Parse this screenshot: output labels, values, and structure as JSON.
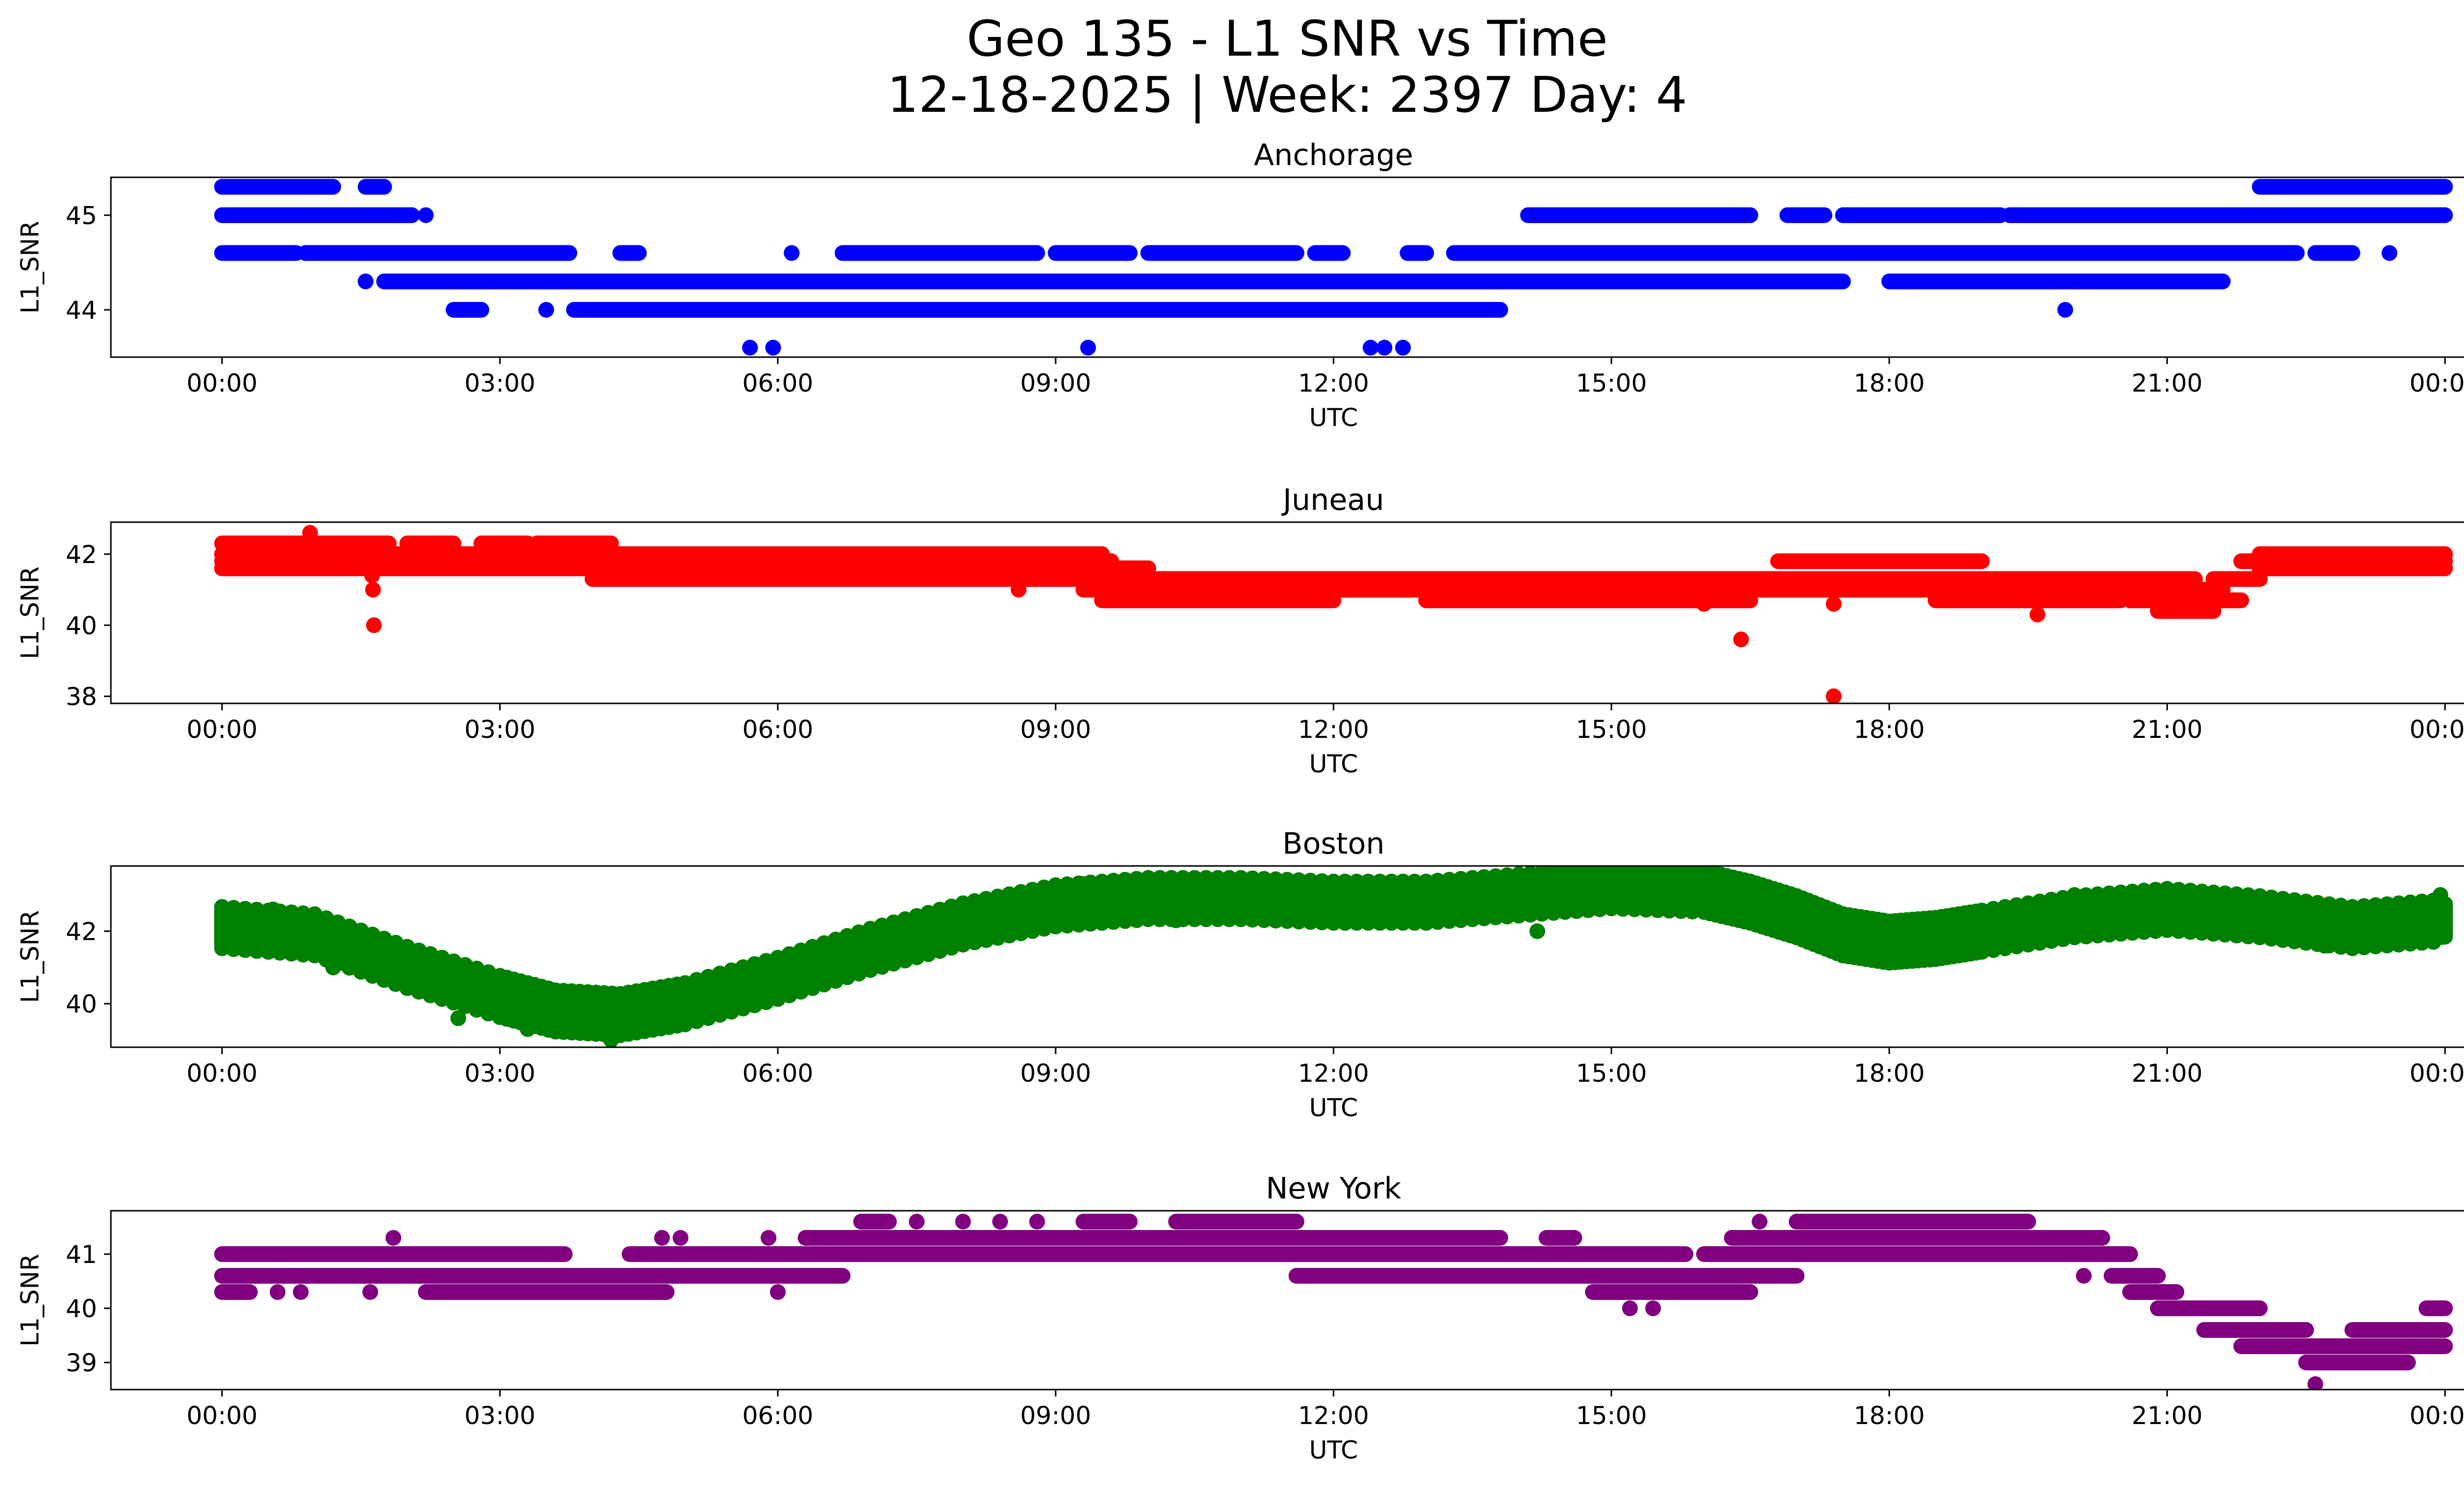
{
  "figure": {
    "title_line1": "Geo 135 - L1 SNR vs Time",
    "title_line2": "12-18-2025 | Week: 2397 Day: 4"
  },
  "chart_data": [
    {
      "type": "scatter",
      "title": "Anchorage",
      "xlabel": "UTC",
      "ylabel": "L1_SNR",
      "color": "#0000ff",
      "xlim": [
        -1.2,
        25.2
      ],
      "ylim": [
        43.5,
        45.4
      ],
      "x_ticks": [
        "00:00",
        "03:00",
        "06:00",
        "09:00",
        "12:00",
        "15:00",
        "18:00",
        "21:00",
        "00:00"
      ],
      "y_ticks": [
        44,
        45
      ],
      "bands": [
        {
          "y": 45.3,
          "segments": [
            [
              0.0,
              1.2
            ],
            [
              1.55,
              1.75
            ],
            [
              22.0,
              24.0
            ]
          ]
        },
        {
          "y": 45.0,
          "segments": [
            [
              0.0,
              2.05
            ],
            [
              14.1,
              16.5
            ],
            [
              16.9,
              17.3
            ],
            [
              17.5,
              19.2
            ],
            [
              19.3,
              24.0
            ]
          ]
        },
        {
          "y": 44.6,
          "segments": [
            [
              0.0,
              0.8
            ],
            [
              0.9,
              3.75
            ],
            [
              4.3,
              4.5
            ],
            [
              6.7,
              8.8
            ],
            [
              9.0,
              9.8
            ],
            [
              10.0,
              11.6
            ],
            [
              11.8,
              12.1
            ],
            [
              12.8,
              13.0
            ],
            [
              13.3,
              22.4
            ],
            [
              22.6,
              23.0
            ]
          ]
        },
        {
          "y": 44.3,
          "segments": [
            [
              1.75,
              17.5
            ],
            [
              18.0,
              21.6
            ]
          ]
        },
        {
          "y": 44.0,
          "segments": [
            [
              2.5,
              2.8
            ],
            [
              3.8,
              13.8
            ]
          ]
        }
      ],
      "points": [
        {
          "x": 1.55,
          "y": 44.3
        },
        {
          "x": 2.2,
          "y": 45.0
        },
        {
          "x": 3.5,
          "y": 44.0
        },
        {
          "x": 5.7,
          "y": 43.6
        },
        {
          "x": 5.95,
          "y": 43.6
        },
        {
          "x": 6.15,
          "y": 44.6
        },
        {
          "x": 9.35,
          "y": 43.6
        },
        {
          "x": 12.4,
          "y": 43.6
        },
        {
          "x": 12.55,
          "y": 43.6
        },
        {
          "x": 12.75,
          "y": 43.6
        },
        {
          "x": 19.9,
          "y": 44.0
        },
        {
          "x": 23.4,
          "y": 44.6
        },
        {
          "x": 12.9,
          "y": 44.6
        }
      ]
    },
    {
      "type": "scatter",
      "title": "Juneau",
      "xlabel": "UTC",
      "ylabel": "L1_SNR",
      "color": "#ff0000",
      "xlim": [
        -1.2,
        25.2
      ],
      "ylim": [
        37.8,
        42.9
      ],
      "x_ticks": [
        "00:00",
        "03:00",
        "06:00",
        "09:00",
        "12:00",
        "15:00",
        "18:00",
        "21:00",
        "00:00"
      ],
      "y_ticks": [
        38,
        40,
        42
      ],
      "bands": [
        {
          "y": 42.3,
          "segments": [
            [
              0.0,
              1.8
            ],
            [
              2.0,
              2.5
            ],
            [
              2.8,
              3.3
            ],
            [
              3.4,
              4.2
            ]
          ]
        },
        {
          "y": 42.0,
          "segments": [
            [
              0.0,
              9.5
            ],
            [
              22.0,
              24.0
            ]
          ]
        },
        {
          "y": 41.8,
          "segments": [
            [
              0.0,
              9.6
            ],
            [
              16.8,
              19.0
            ],
            [
              21.8,
              24.0
            ]
          ]
        },
        {
          "y": 41.6,
          "segments": [
            [
              0.0,
              10.0
            ],
            [
              22.0,
              24.0
            ]
          ]
        },
        {
          "y": 41.3,
          "segments": [
            [
              4.0,
              21.3
            ],
            [
              21.5,
              22.0
            ]
          ]
        },
        {
          "y": 41.0,
          "segments": [
            [
              9.3,
              21.6
            ]
          ]
        },
        {
          "y": 40.7,
          "segments": [
            [
              9.5,
              12.0
            ],
            [
              13.0,
              16.5
            ],
            [
              18.5,
              20.5
            ],
            [
              20.6,
              21.8
            ]
          ]
        },
        {
          "y": 40.4,
          "segments": [
            [
              20.9,
              21.5
            ]
          ]
        }
      ],
      "points": [
        {
          "x": 0.95,
          "y": 42.6
        },
        {
          "x": 1.35,
          "y": 41.6
        },
        {
          "x": 1.62,
          "y": 41.4
        },
        {
          "x": 1.63,
          "y": 41.0
        },
        {
          "x": 1.64,
          "y": 40.0
        },
        {
          "x": 16.4,
          "y": 39.6
        },
        {
          "x": 17.4,
          "y": 38.0
        },
        {
          "x": 17.4,
          "y": 40.6
        },
        {
          "x": 22.2,
          "y": 42.0
        },
        {
          "x": 19.6,
          "y": 40.3
        },
        {
          "x": 16.0,
          "y": 40.6
        },
        {
          "x": 8.6,
          "y": 41.0
        },
        {
          "x": 18.6,
          "y": 40.7
        }
      ]
    },
    {
      "type": "scatter",
      "title": "Boston",
      "xlabel": "UTC",
      "ylabel": "L1_SNR",
      "color": "#008000",
      "xlim": [
        -1.2,
        25.2
      ],
      "ylim": [
        38.8,
        43.8
      ],
      "x_ticks": [
        "00:00",
        "03:00",
        "06:00",
        "09:00",
        "12:00",
        "15:00",
        "18:00",
        "21:00",
        "00:00"
      ],
      "y_ticks": [
        40,
        42
      ],
      "trend": {
        "x": [
          0.0,
          1.0,
          2.0,
          3.0,
          3.6,
          4.3,
          5.0,
          6.0,
          7.0,
          8.0,
          9.0,
          10.0,
          11.0,
          12.0,
          13.0,
          14.0,
          15.0,
          16.0,
          16.5,
          17.0,
          17.5,
          18.0,
          18.5,
          19.0,
          20.0,
          21.0,
          22.0,
          23.0,
          24.0
        ],
        "center": [
          42.1,
          41.9,
          41.0,
          40.2,
          39.8,
          39.7,
          40.0,
          40.7,
          41.5,
          42.2,
          42.7,
          42.9,
          42.9,
          42.8,
          42.8,
          43.0,
          43.2,
          43.1,
          42.8,
          42.4,
          41.9,
          41.7,
          41.8,
          42.0,
          42.4,
          42.6,
          42.4,
          42.1,
          42.3
        ],
        "spread": 0.45
      },
      "points": [
        {
          "x": 0.55,
          "y": 42.6
        },
        {
          "x": 1.2,
          "y": 41.0
        },
        {
          "x": 2.5,
          "y": 41.0
        },
        {
          "x": 2.55,
          "y": 39.6
        },
        {
          "x": 3.3,
          "y": 39.3
        },
        {
          "x": 4.2,
          "y": 39.0
        },
        {
          "x": 10.3,
          "y": 42.3
        },
        {
          "x": 12.0,
          "y": 43.3
        },
        {
          "x": 14.2,
          "y": 42.0
        },
        {
          "x": 15.5,
          "y": 43.5
        },
        {
          "x": 15.45,
          "y": 43.6
        },
        {
          "x": 20.0,
          "y": 43.0
        },
        {
          "x": 22.7,
          "y": 41.6
        },
        {
          "x": 23.0,
          "y": 41.6
        },
        {
          "x": 23.95,
          "y": 43.0
        },
        {
          "x": 16.8,
          "y": 42.3
        },
        {
          "x": 9.3,
          "y": 43.3
        },
        {
          "x": 18.3,
          "y": 41.3
        }
      ]
    },
    {
      "type": "scatter",
      "title": "New York",
      "xlabel": "UTC",
      "ylabel": "L1_SNR",
      "color": "#800080",
      "xlim": [
        -1.2,
        25.2
      ],
      "ylim": [
        38.5,
        41.8
      ],
      "x_ticks": [
        "00:00",
        "03:00",
        "06:00",
        "09:00",
        "12:00",
        "15:00",
        "18:00",
        "21:00",
        "00:00"
      ],
      "y_ticks": [
        39,
        40,
        41
      ],
      "bands": [
        {
          "y": 41.6,
          "segments": [
            [
              6.9,
              7.2
            ],
            [
              9.3,
              9.8
            ],
            [
              10.3,
              11.6
            ],
            [
              17.0,
              19.5
            ]
          ]
        },
        {
          "y": 41.3,
          "segments": [
            [
              6.3,
              13.8
            ],
            [
              14.3,
              14.6
            ],
            [
              16.3,
              20.3
            ]
          ]
        },
        {
          "y": 41.0,
          "segments": [
            [
              0.0,
              3.7
            ],
            [
              4.4,
              15.8
            ],
            [
              16.0,
              20.6
            ]
          ]
        },
        {
          "y": 40.6,
          "segments": [
            [
              0.0,
              6.7
            ],
            [
              11.6,
              17.0
            ],
            [
              20.4,
              20.9
            ]
          ]
        },
        {
          "y": 40.3,
          "segments": [
            [
              0.0,
              0.3
            ],
            [
              2.2,
              4.8
            ],
            [
              14.8,
              16.5
            ],
            [
              20.6,
              21.1
            ]
          ]
        },
        {
          "y": 40.0,
          "segments": [
            [
              20.9,
              22.0
            ],
            [
              23.8,
              24.0
            ]
          ]
        },
        {
          "y": 39.6,
          "segments": [
            [
              21.4,
              22.5
            ],
            [
              23.0,
              24.0
            ]
          ]
        },
        {
          "y": 39.3,
          "segments": [
            [
              21.8,
              24.0
            ]
          ]
        },
        {
          "y": 39.0,
          "segments": [
            [
              22.5,
              23.6
            ]
          ]
        }
      ],
      "points": [
        {
          "x": 1.6,
          "y": 40.3
        },
        {
          "x": 1.85,
          "y": 41.3
        },
        {
          "x": 4.75,
          "y": 41.3
        },
        {
          "x": 4.95,
          "y": 41.3
        },
        {
          "x": 5.9,
          "y": 41.3
        },
        {
          "x": 6.0,
          "y": 40.3
        },
        {
          "x": 7.5,
          "y": 41.6
        },
        {
          "x": 8.0,
          "y": 41.6
        },
        {
          "x": 8.4,
          "y": 41.6
        },
        {
          "x": 8.8,
          "y": 41.6
        },
        {
          "x": 11.8,
          "y": 40.6
        },
        {
          "x": 15.2,
          "y": 40.0
        },
        {
          "x": 15.45,
          "y": 40.0
        },
        {
          "x": 16.6,
          "y": 41.6
        },
        {
          "x": 20.1,
          "y": 40.6
        },
        {
          "x": 22.6,
          "y": 38.6
        },
        {
          "x": 0.6,
          "y": 40.3
        },
        {
          "x": 0.85,
          "y": 40.3
        }
      ]
    }
  ]
}
